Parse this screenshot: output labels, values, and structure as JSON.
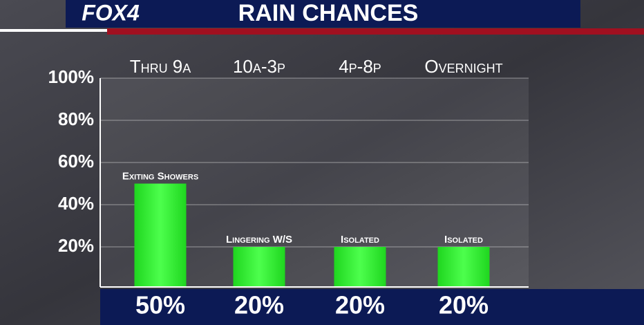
{
  "logo": "FOX4",
  "chart_data": {
    "type": "bar",
    "title": "RAIN CHANCES",
    "categories": [
      "Thru 9a",
      "10a-3p",
      "4p-8p",
      "Overnight"
    ],
    "values": [
      50,
      20,
      20,
      20
    ],
    "value_labels": [
      "50%",
      "20%",
      "20%",
      "20%"
    ],
    "annotations": [
      "Exiting Showers",
      "Lingering W/S",
      "Isolated",
      "Isolated"
    ],
    "color": "#2ef52e",
    "ylim": [
      0,
      100
    ],
    "yticks": [
      {
        "value": 20,
        "label": "20%"
      },
      {
        "value": 40,
        "label": "40%"
      },
      {
        "value": 60,
        "label": "60%"
      },
      {
        "value": 80,
        "label": "80%"
      },
      {
        "value": 100,
        "label": "100%"
      }
    ],
    "grid": true
  }
}
